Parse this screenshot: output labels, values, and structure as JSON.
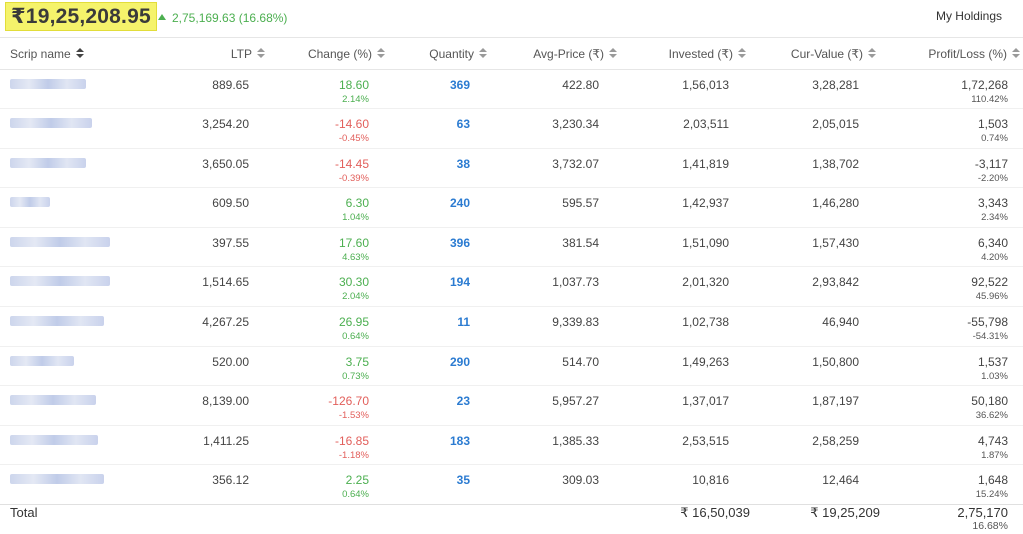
{
  "header": {
    "total_value": "₹19,25,208.95",
    "day_change": "2,75,169.63 (16.68%)",
    "holdings_dropdown": "My Holdings"
  },
  "columns": [
    "Scrip name",
    "LTP",
    "Change (%)",
    "Quantity",
    "Avg-Price (₹)",
    "Invested (₹)",
    "Cur-Value (₹)",
    "Profit/Loss (%)"
  ],
  "rows": [
    {
      "ltp": "889.65",
      "change": "18.60",
      "change_pct": "2.14%",
      "change_dir": "pos",
      "qty": "369",
      "avg": "422.80",
      "invested": "1,56,013",
      "cur": "3,28,281",
      "pl": "1,72,268",
      "pl_pct": "110.42%"
    },
    {
      "ltp": "3,254.20",
      "change": "-14.60",
      "change_pct": "-0.45%",
      "change_dir": "neg",
      "qty": "63",
      "avg": "3,230.34",
      "invested": "2,03,511",
      "cur": "2,05,015",
      "pl": "1,503",
      "pl_pct": "0.74%"
    },
    {
      "ltp": "3,650.05",
      "change": "-14.45",
      "change_pct": "-0.39%",
      "change_dir": "neg",
      "qty": "38",
      "avg": "3,732.07",
      "invested": "1,41,819",
      "cur": "1,38,702",
      "pl": "-3,117",
      "pl_pct": "-2.20%"
    },
    {
      "ltp": "609.50",
      "change": "6.30",
      "change_pct": "1.04%",
      "change_dir": "pos",
      "qty": "240",
      "avg": "595.57",
      "invested": "1,42,937",
      "cur": "1,46,280",
      "pl": "3,343",
      "pl_pct": "2.34%"
    },
    {
      "ltp": "397.55",
      "change": "17.60",
      "change_pct": "4.63%",
      "change_dir": "pos",
      "qty": "396",
      "avg": "381.54",
      "invested": "1,51,090",
      "cur": "1,57,430",
      "pl": "6,340",
      "pl_pct": "4.20%"
    },
    {
      "ltp": "1,514.65",
      "change": "30.30",
      "change_pct": "2.04%",
      "change_dir": "pos",
      "qty": "194",
      "avg": "1,037.73",
      "invested": "2,01,320",
      "cur": "2,93,842",
      "pl": "92,522",
      "pl_pct": "45.96%"
    },
    {
      "ltp": "4,267.25",
      "change": "26.95",
      "change_pct": "0.64%",
      "change_dir": "pos",
      "qty": "11",
      "avg": "9,339.83",
      "invested": "1,02,738",
      "cur": "46,940",
      "pl": "-55,798",
      "pl_pct": "-54.31%"
    },
    {
      "ltp": "520.00",
      "change": "3.75",
      "change_pct": "0.73%",
      "change_dir": "pos",
      "qty": "290",
      "avg": "514.70",
      "invested": "1,49,263",
      "cur": "1,50,800",
      "pl": "1,537",
      "pl_pct": "1.03%"
    },
    {
      "ltp": "8,139.00",
      "change": "-126.70",
      "change_pct": "-1.53%",
      "change_dir": "neg",
      "qty": "23",
      "avg": "5,957.27",
      "invested": "1,37,017",
      "cur": "1,87,197",
      "pl": "50,180",
      "pl_pct": "36.62%"
    },
    {
      "ltp": "1,411.25",
      "change": "-16.85",
      "change_pct": "-1.18%",
      "change_dir": "neg",
      "qty": "183",
      "avg": "1,385.33",
      "invested": "2,53,515",
      "cur": "2,58,259",
      "pl": "4,743",
      "pl_pct": "1.87%"
    },
    {
      "ltp": "356.12",
      "change": "2.25",
      "change_pct": "0.64%",
      "change_dir": "pos",
      "qty": "35",
      "avg": "309.03",
      "invested": "10,816",
      "cur": "12,464",
      "pl": "1,648",
      "pl_pct": "15.24%"
    }
  ],
  "totals": {
    "label": "Total",
    "invested": "₹ 16,50,039",
    "cur": "₹ 19,25,209",
    "pl": "2,75,170",
    "pl_pct": "16.68%"
  }
}
